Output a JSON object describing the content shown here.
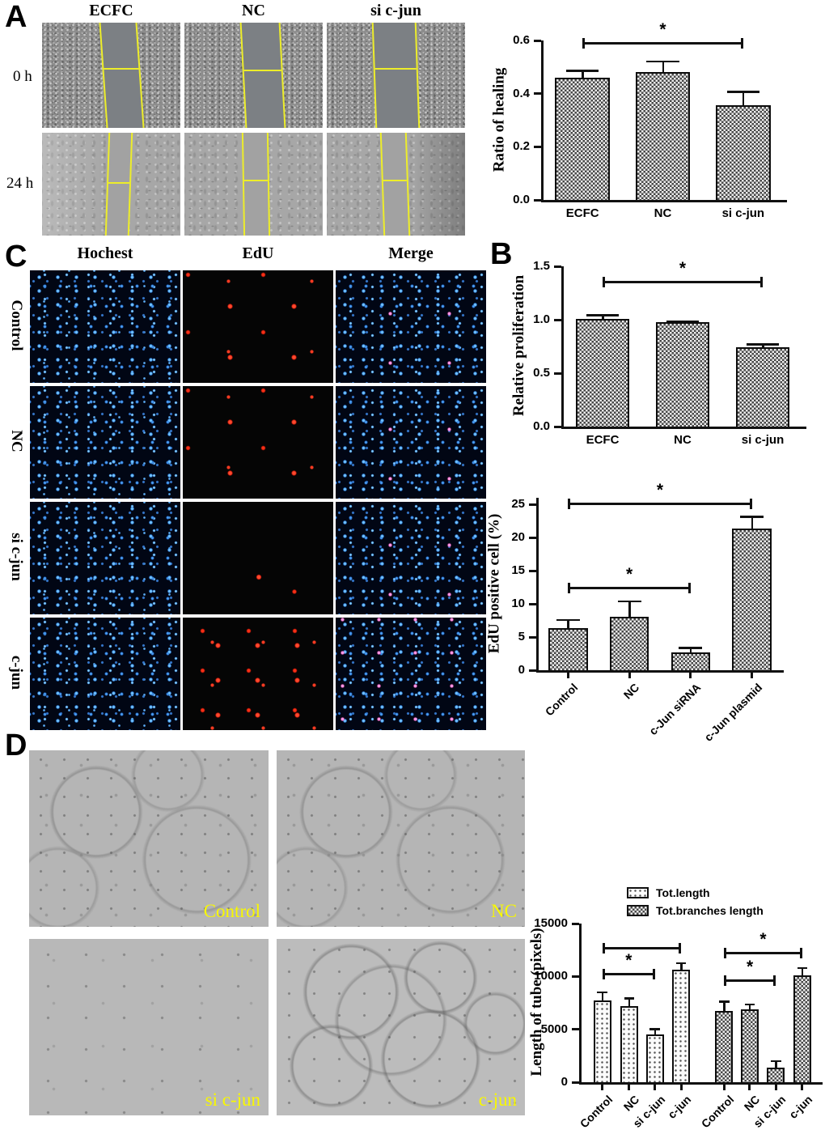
{
  "panels": {
    "A": {
      "letter": "A",
      "col_headers": [
        "ECFC",
        "NC",
        "si c-jun"
      ],
      "row_headers": [
        "0 h",
        "24 h"
      ]
    },
    "B": {
      "letter": "B"
    },
    "C": {
      "letter": "C",
      "col_headers": [
        "Hochest",
        "EdU",
        "Merge"
      ],
      "row_headers": [
        "Control",
        "NC",
        "si c-jun",
        "c-jun"
      ]
    },
    "D": {
      "letter": "D",
      "image_labels": [
        "Control",
        "NC",
        "si c-jun",
        "c-jun"
      ]
    }
  },
  "colors": {
    "axis": "#111111",
    "wound_line_yellow": "#eded2a",
    "image_label_yellow": "#f8f800",
    "hoechst_blue": "#4da0f0",
    "edu_red": "#ff3b22"
  },
  "chart_data": [
    {
      "id": "ratio-of-healing",
      "type": "bar",
      "title": "",
      "ylabel": "Ratio of healing",
      "categories": [
        "ECFC",
        "NC",
        "si c-jun"
      ],
      "values": [
        0.46,
        0.48,
        0.355
      ],
      "errors": [
        0.03,
        0.045,
        0.055
      ],
      "ylim": [
        0,
        0.6
      ],
      "yticks": [
        0,
        0.2,
        0.4,
        0.6
      ],
      "ytick_labels": [
        "0.0",
        "0.2",
        "0.4",
        "0.6"
      ],
      "pattern": "checker",
      "xlabel_rotation": 0,
      "grid": false,
      "significance": [
        {
          "from": 0,
          "to": 2,
          "y": 0.595,
          "label": "*"
        }
      ]
    },
    {
      "id": "relative-proliferation",
      "type": "bar",
      "title": "",
      "ylabel": "Relative proliferation",
      "categories": [
        "ECFC",
        "NC",
        "si c-jun"
      ],
      "values": [
        1.01,
        0.98,
        0.74
      ],
      "errors": [
        0.04,
        0.015,
        0.04
      ],
      "ylim": [
        0,
        1.5
      ],
      "yticks": [
        0,
        0.5,
        1.0,
        1.5
      ],
      "ytick_labels": [
        "0.0",
        "0.5",
        "1.0",
        "1.5"
      ],
      "pattern": "checker",
      "xlabel_rotation": 0,
      "grid": false,
      "significance": [
        {
          "from": 0,
          "to": 2,
          "y": 1.36,
          "label": "*"
        }
      ]
    },
    {
      "id": "edu-positive-cell",
      "type": "bar",
      "title": "",
      "ylabel": "EdU positive cell (%)",
      "categories": [
        "Control",
        "NC",
        "c-Jun siRNA",
        "c-Jun plasmid"
      ],
      "values": [
        6.4,
        8.0,
        2.7,
        21.4
      ],
      "errors": [
        1.3,
        2.5,
        0.8,
        1.9
      ],
      "ylim": [
        0,
        26
      ],
      "yticks": [
        0,
        5,
        10,
        15,
        20,
        25
      ],
      "ytick_labels": [
        "0",
        "5",
        "10",
        "15",
        "20",
        "25"
      ],
      "pattern": "checker",
      "xlabel_rotation": 45,
      "grid": false,
      "significance": [
        {
          "from": 0,
          "to": 3,
          "y": 25.3,
          "label": "*"
        },
        {
          "from": 0,
          "to": 2,
          "y": 12.6,
          "label": "*"
        }
      ]
    },
    {
      "id": "length-of-tube",
      "type": "bar",
      "title": "",
      "ylabel": "Length of tube (pixels)",
      "categories": [
        "Control",
        "NC",
        "si c-jun",
        "c-jun"
      ],
      "series": [
        {
          "name": "Tot.length",
          "pattern": "dots",
          "values": [
            7700,
            7200,
            4500,
            10600
          ],
          "errors": [
            900,
            800,
            600,
            750
          ]
        },
        {
          "name": "Tot.branches length",
          "pattern": "checker",
          "values": [
            6700,
            6900,
            1400,
            10100
          ],
          "errors": [
            1000,
            550,
            700,
            800
          ]
        }
      ],
      "ylim": [
        0,
        15000
      ],
      "yticks": [
        0,
        5000,
        10000,
        15000
      ],
      "ytick_labels": [
        "0",
        "5000",
        "10000",
        "15000"
      ],
      "xlabel_rotation": 45,
      "grid": false,
      "legend_position": "top",
      "significance": [
        {
          "from": 0,
          "to": 3,
          "y": 12800,
          "label": ""
        },
        {
          "from": 0,
          "to": 2,
          "y": 10300,
          "label": "*"
        },
        {
          "from": 4,
          "to": 7,
          "y": 12300,
          "label": "*"
        },
        {
          "from": 4,
          "to": 6,
          "y": 9700,
          "label": "*"
        }
      ]
    }
  ]
}
